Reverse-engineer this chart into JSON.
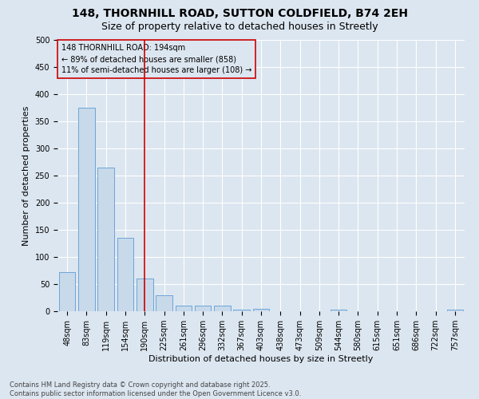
{
  "title1": "148, THORNHILL ROAD, SUTTON COLDFIELD, B74 2EH",
  "title2": "Size of property relative to detached houses in Streetly",
  "xlabel": "Distribution of detached houses by size in Streetly",
  "ylabel": "Number of detached properties",
  "categories": [
    "48sqm",
    "83sqm",
    "119sqm",
    "154sqm",
    "190sqm",
    "225sqm",
    "261sqm",
    "296sqm",
    "332sqm",
    "367sqm",
    "403sqm",
    "438sqm",
    "473sqm",
    "509sqm",
    "544sqm",
    "580sqm",
    "615sqm",
    "651sqm",
    "686sqm",
    "722sqm",
    "757sqm"
  ],
  "values": [
    72,
    375,
    265,
    135,
    60,
    30,
    10,
    10,
    10,
    3,
    5,
    0,
    0,
    0,
    3,
    0,
    0,
    0,
    0,
    0,
    3
  ],
  "bar_color": "#c8d9ea",
  "bar_edge_color": "#5b9bd5",
  "background_color": "#dce6f0",
  "vline_color": "#cc0000",
  "annotation_line1": "148 THORNHILL ROAD: 194sqm",
  "annotation_line2": "← 89% of detached houses are smaller (858)",
  "annotation_line3": "11% of semi-detached houses are larger (108) →",
  "annotation_box_color": "#cc0000",
  "ylim": [
    0,
    500
  ],
  "yticks": [
    0,
    50,
    100,
    150,
    200,
    250,
    300,
    350,
    400,
    450,
    500
  ],
  "footer": "Contains HM Land Registry data © Crown copyright and database right 2025.\nContains public sector information licensed under the Open Government Licence v3.0.",
  "title_fontsize": 10,
  "subtitle_fontsize": 9,
  "axis_label_fontsize": 8,
  "tick_fontsize": 7,
  "annotation_fontsize": 7,
  "footer_fontsize": 6
}
